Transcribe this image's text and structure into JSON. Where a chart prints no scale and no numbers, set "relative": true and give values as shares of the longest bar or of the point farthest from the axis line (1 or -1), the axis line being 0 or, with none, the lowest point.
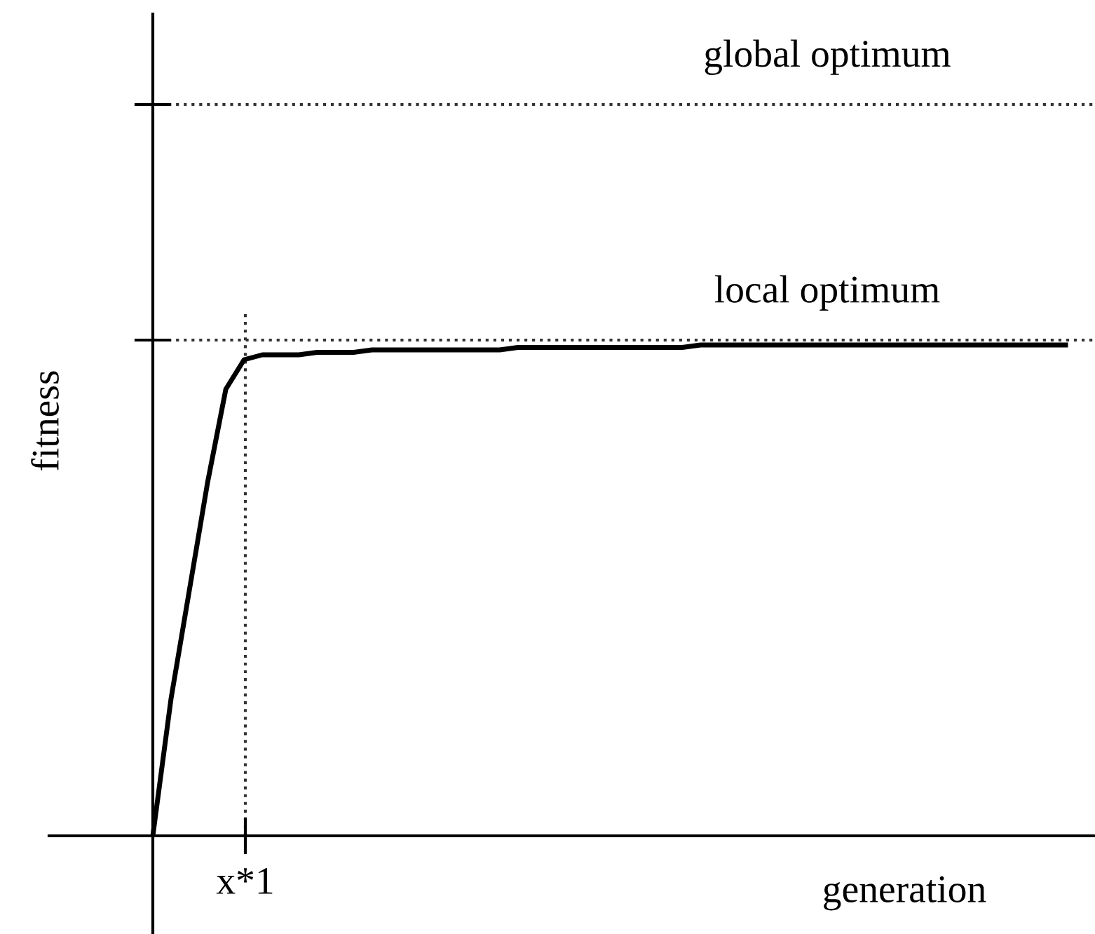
{
  "chart_data": {
    "type": "line",
    "relative": true,
    "xlabel": "generation",
    "ylabel": "fitness",
    "categories": [
      null,
      null,
      null,
      null,
      null,
      null,
      null,
      null,
      null,
      null,
      null,
      null,
      null,
      null,
      null,
      null,
      null,
      null,
      null,
      null,
      null,
      null,
      null,
      null,
      null,
      null,
      null,
      null,
      null,
      null,
      null,
      null,
      null,
      null,
      null,
      null,
      null,
      null,
      null,
      null,
      null,
      null,
      null,
      null,
      null,
      null,
      null,
      null,
      null,
      null,
      null
    ],
    "series": [
      {
        "color": "#000000",
        "values": [
          0,
          0.28,
          0.5,
          0.72,
          0.91,
          0.97,
          0.98,
          0.98,
          0.98,
          0.985,
          0.985,
          0.985,
          0.99,
          0.99,
          0.99,
          0.99,
          0.99,
          0.99,
          0.99,
          0.99,
          0.995,
          0.995,
          0.995,
          0.995,
          0.995,
          0.995,
          0.995,
          0.995,
          0.995,
          0.995,
          1,
          1,
          1,
          1,
          1,
          1,
          1,
          1,
          1,
          1,
          1,
          1,
          1,
          1,
          1,
          1,
          1,
          1,
          1,
          1,
          1
        ]
      }
    ],
    "ref_lines": [
      {
        "axis": "y",
        "value": 1.49,
        "label": "global optimum",
        "color": "#333333",
        "line_style": "dotted"
      },
      {
        "axis": "y",
        "value": 1.01,
        "label": "local optimum",
        "color": "#333333",
        "line_style": "dotted"
      }
    ],
    "annotations": [
      "x*1"
    ],
    "marker": "none",
    "line_style": "solid"
  }
}
